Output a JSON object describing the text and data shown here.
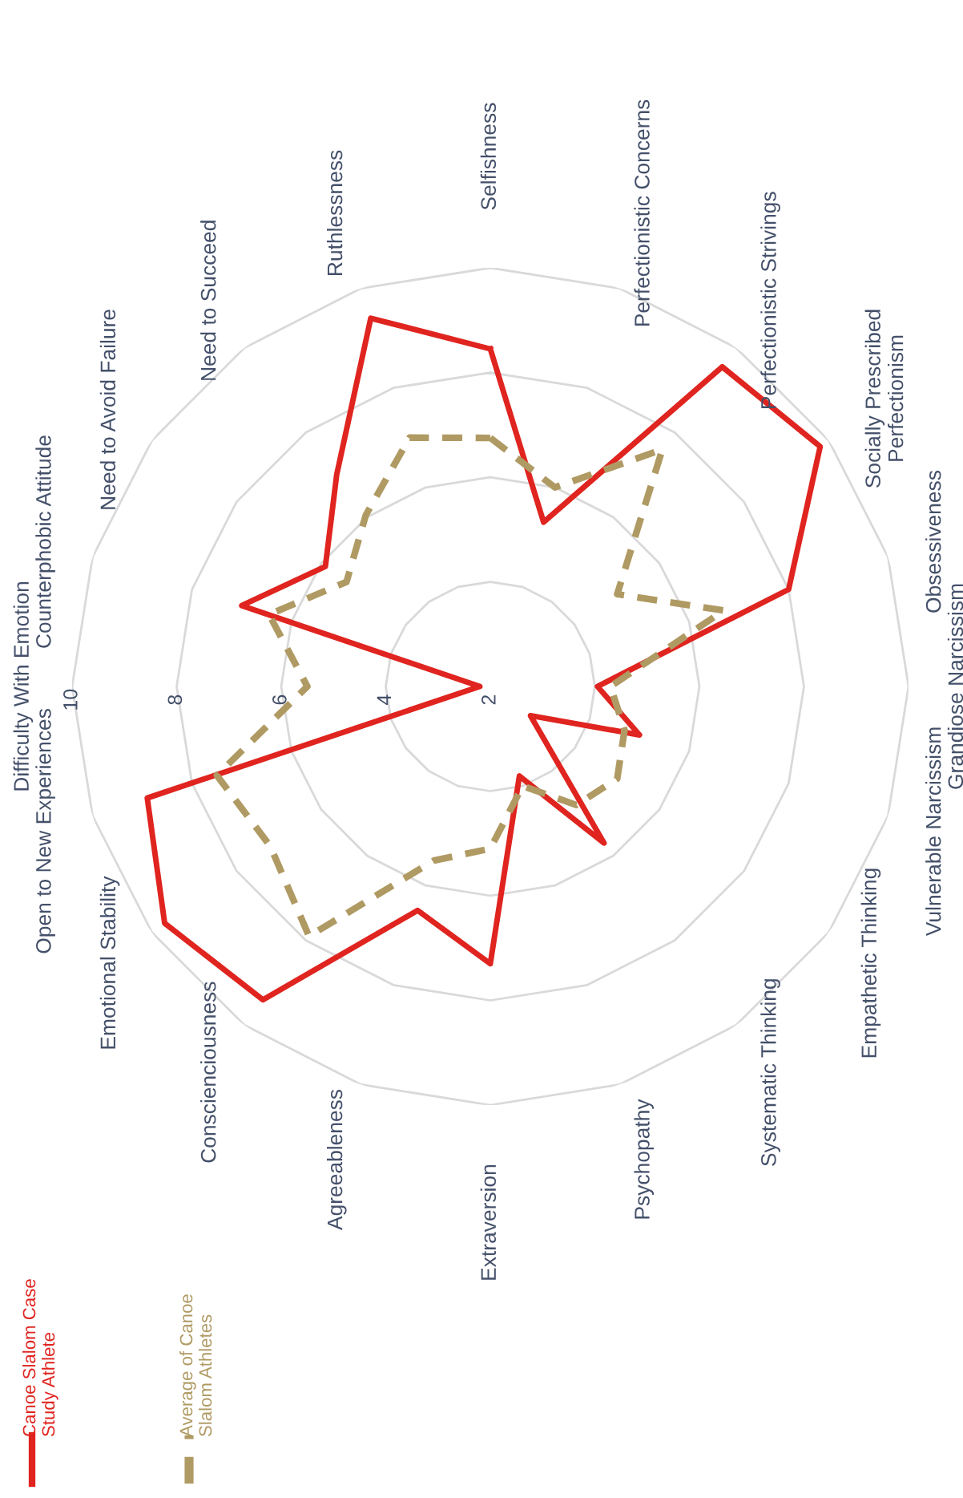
{
  "chart_data": {
    "type": "radar",
    "categories": [
      "Selfishness",
      "Perfectionistic Concerns",
      "Perfectionistic Strivings",
      "Socially Prescribed\nPerfectionism",
      "Obsessiveness",
      "Grandiose Narcissism",
      "Vulnerable Narcissism",
      "Empathetic Thinking",
      "Systematic Thinking",
      "Psychopathy",
      "Extraversion",
      "Agreeableness",
      "Conscienciousness",
      "Emotional Stability",
      "Open to New Experiences",
      "Difficulty With Emotion",
      "Counterphobic Attitude",
      "Need to Avoid Failure",
      "Need to Succeed",
      "Ruthlessness"
    ],
    "series": [
      {
        "name": "Canoe Slalom Case\nStudy Athlete",
        "color": "#e0241f",
        "line_style": "solid",
        "values": [
          8.45,
          5.3,
          9.55,
          9.8,
          8.0,
          4.05,
          5.0,
          2.95,
          5.7,
          3.8,
          7.3,
          6.5,
          9.4,
          9.7,
          8.9,
          2.2,
          7.0,
          5.9,
          7.0,
          9.4
        ]
      },
      {
        "name": "Average of Canoe\nSlalom Athletes",
        "color": "#b09a63",
        "line_style": "dashed",
        "values": [
          6.75,
          6.0,
          7.6,
          5.0,
          6.7,
          4.3,
          4.7,
          5.0,
          4.8,
          4.0,
          5.1,
          5.5,
          7.9,
          7.2,
          7.5,
          5.5,
          6.45,
          5.4,
          6.05,
          7.0
        ]
      }
    ],
    "ylim": [
      2,
      10
    ],
    "yticks": [
      2,
      4,
      6,
      8,
      10
    ],
    "grid": true,
    "legend": "bottom left",
    "marker": "none"
  }
}
